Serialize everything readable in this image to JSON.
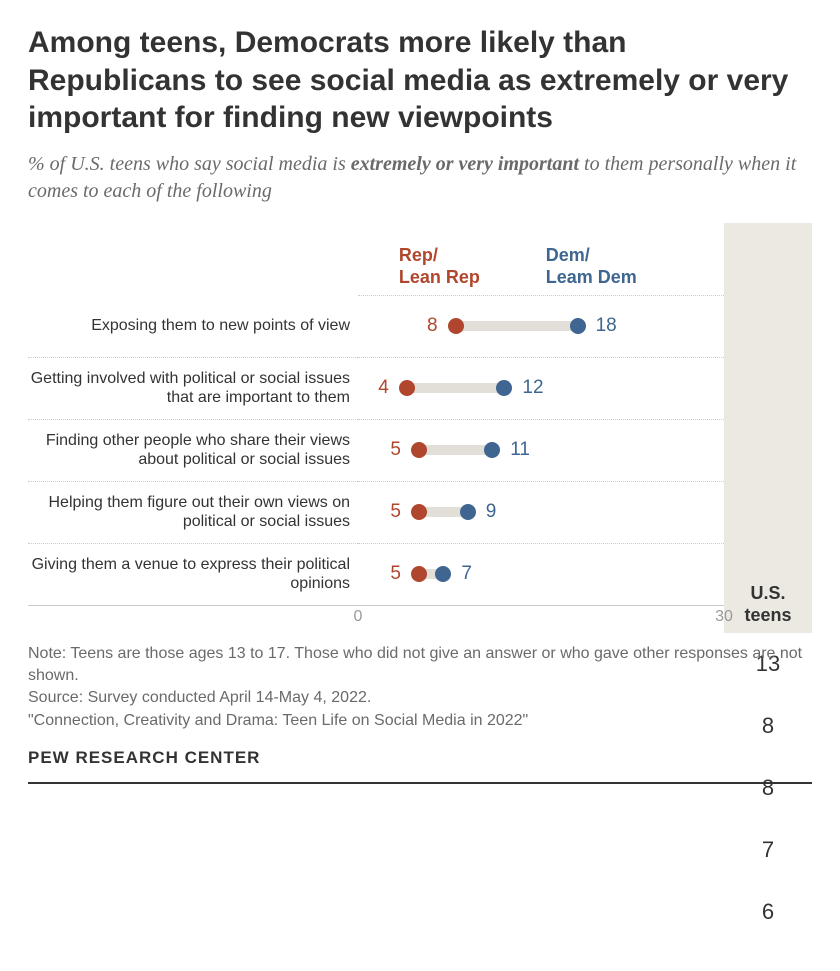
{
  "title": "Among teens, Democrats more likely than Republicans to see social media as extremely or very important for finding new viewpoints",
  "subtitle_prefix": "% of U.S. teens who say social media is ",
  "subtitle_bold": "extremely or very important",
  "subtitle_suffix": " to them personally when it comes to each of the following",
  "legend": {
    "rep": "Rep/\nLean Rep",
    "dem": "Dem/\nLeam Dem",
    "total": "U.S.\nteens"
  },
  "chart": {
    "type": "dot-range",
    "x_min": 0,
    "x_max": 30,
    "rep_color": "#b1462e",
    "dem_color": "#3e6691",
    "track_color": "#e2dfd8",
    "background": "#ffffff",
    "totals_bg": "#ece9e2",
    "dot_size": 16,
    "track_height": 10,
    "row_labels": [
      "Exposing them to new points of view",
      "Getting involved with political or social issues that are important to them",
      "Finding other people who share their views about political or social issues",
      "Helping them figure out their own views on political or social issues",
      "Giving them a venue to express their political opinions"
    ],
    "rep_values": [
      8,
      4,
      5,
      5,
      5
    ],
    "dem_values": [
      18,
      12,
      11,
      9,
      7
    ],
    "totals": [
      13,
      8,
      8,
      7,
      6
    ]
  },
  "axis": {
    "min_label": "0",
    "max_label": "30"
  },
  "notes": {
    "line1": "Note: Teens are those ages 13 to 17. Those who did not give an answer or who gave other responses are not shown.",
    "line2": "Source: Survey conducted April 14-May 4, 2022.",
    "line3": "\"Connection, Creativity and Drama: Teen Life on Social Media in 2022\""
  },
  "brand": "PEW RESEARCH CENTER"
}
